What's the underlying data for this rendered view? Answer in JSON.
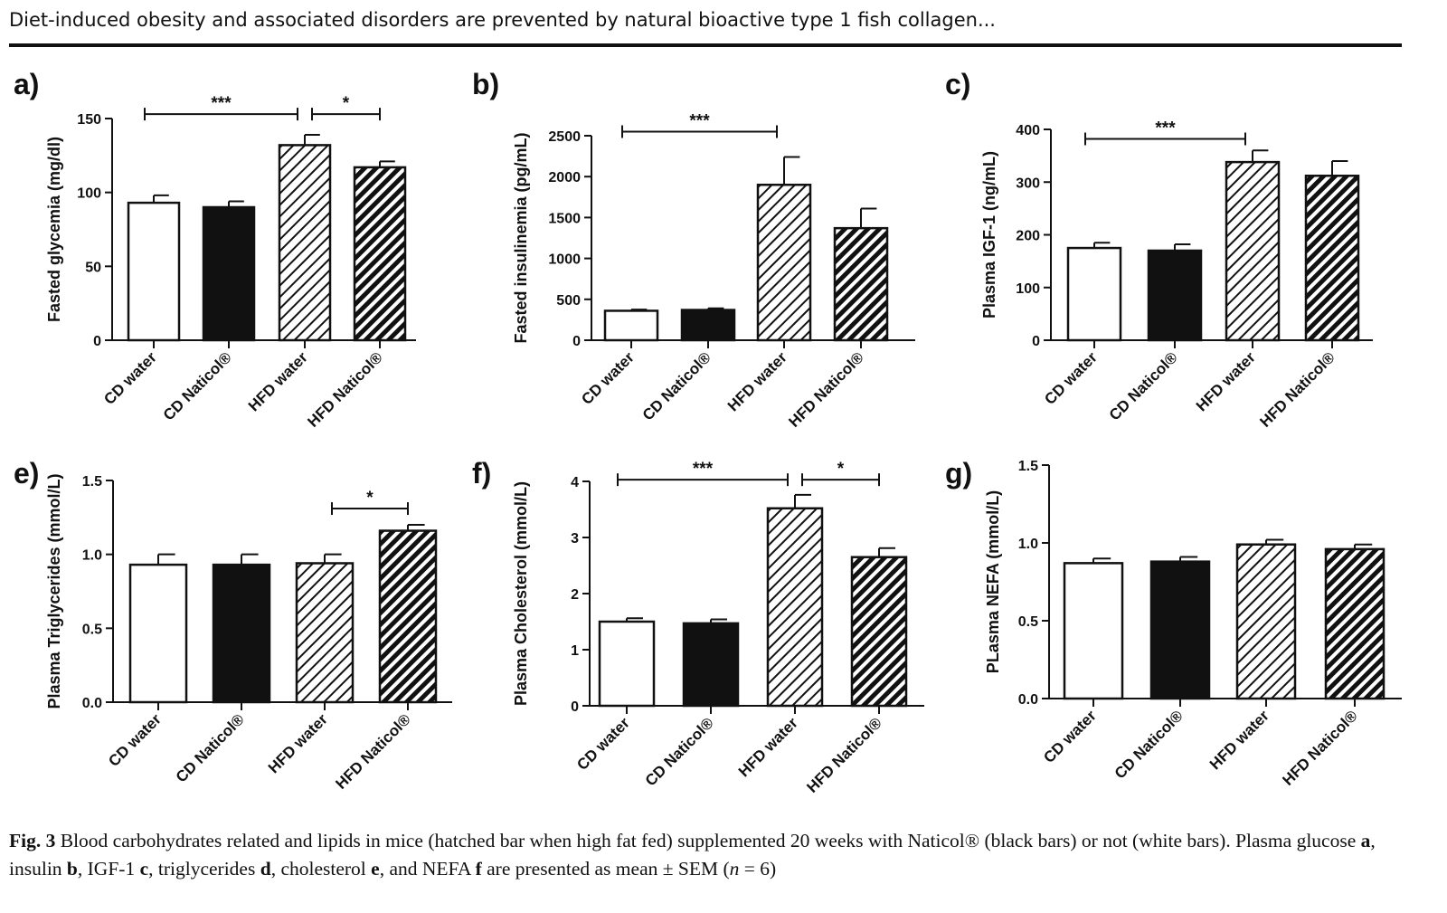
{
  "header": {
    "title": "Diet-induced obesity and associated disorders are prevented by natural bioactive type 1 fish collagen..."
  },
  "caption": {
    "fig_label": "Fig. 3",
    "text_1": "  Blood carbohydrates related and lipids in mice (hatched bar when high fat fed) supplemented 20 weeks with Naticol® (black bars) or not (white bars). Plasma glucose ",
    "ref_a": "a",
    "text_2": ", insulin ",
    "ref_b": "b",
    "text_3": ", IGF-1 ",
    "ref_c": "c",
    "text_4": ", triglycerides ",
    "ref_d": "d",
    "text_5": ", cholesterol ",
    "ref_e": "e",
    "text_6": ", and NEFA ",
    "ref_f": "f",
    "text_7": " are presented as mean ± SEM (",
    "n_var": "n",
    "text_8": " = 6)"
  },
  "colors": {
    "ink": "#111111",
    "white_bar": "#ffffff",
    "black_bar": "#111111"
  },
  "chart_data": [
    {
      "panel": "a)",
      "type": "bar",
      "ylabel": "Fasted glycemia (mg/dl)",
      "ylim": [
        0,
        150
      ],
      "yticks": [
        0,
        50,
        100,
        150
      ],
      "categories": [
        "CD water",
        "CD Naticol®",
        "HFD water",
        "HFD Naticol®"
      ],
      "fills": [
        "white",
        "black",
        "hatch-light",
        "hatch-dark"
      ],
      "values": [
        93,
        90,
        132,
        117
      ],
      "errors": [
        5,
        4,
        7,
        4
      ],
      "significance": [
        {
          "from": 0,
          "to": 2,
          "label": "***",
          "y": 153
        },
        {
          "from": 2,
          "to": 3,
          "label": "*",
          "y": 153
        }
      ]
    },
    {
      "panel": "b)",
      "type": "bar",
      "ylabel": "Fasted insulinemia (pg/mL)",
      "ylim": [
        0,
        2500
      ],
      "yticks": [
        0,
        500,
        1000,
        1500,
        2000,
        2500
      ],
      "categories": [
        "CD water",
        "CD Naticol®",
        "HFD water",
        "HFD Naticol®"
      ],
      "fills": [
        "white",
        "black",
        "hatch-light",
        "hatch-dark"
      ],
      "values": [
        360,
        370,
        1900,
        1370
      ],
      "errors": [
        15,
        20,
        340,
        240
      ],
      "significance": [
        {
          "from": 0,
          "to": 2,
          "label": "***",
          "y": 2550
        }
      ]
    },
    {
      "panel": "c)",
      "type": "bar",
      "ylabel": "Plasma IGF-1 (ng/mL)",
      "ylim": [
        0,
        400
      ],
      "yticks": [
        0,
        100,
        200,
        300,
        400
      ],
      "categories": [
        "CD water",
        "CD Naticol®",
        "HFD water",
        "HFD Naticol®"
      ],
      "fills": [
        "white",
        "black",
        "hatch-light",
        "hatch-dark"
      ],
      "values": [
        175,
        170,
        338,
        312
      ],
      "errors": [
        10,
        12,
        22,
        28
      ],
      "significance": [
        {
          "from": 0,
          "to": 2,
          "label": "***",
          "y": 382
        }
      ]
    },
    {
      "panel": "e)",
      "type": "bar",
      "ylabel": "Plasma Triglycerides (mmol/L)",
      "ylim": [
        0,
        1.5
      ],
      "yticks": [
        0.0,
        0.5,
        1.0,
        1.5
      ],
      "tick_decimals": 1,
      "categories": [
        "CD water",
        "CD Naticol®",
        "HFD water",
        "HFD Naticol®"
      ],
      "fills": [
        "white",
        "black",
        "hatch-light",
        "hatch-dark"
      ],
      "values": [
        0.93,
        0.93,
        0.94,
        1.16
      ],
      "errors": [
        0.07,
        0.07,
        0.06,
        0.04
      ],
      "significance": [
        {
          "from": 2,
          "to": 3,
          "label": "*",
          "y": 1.31
        }
      ]
    },
    {
      "panel": "f)",
      "type": "bar",
      "ylabel": "Plasma Cholesterol (mmol/L)",
      "ylim": [
        0,
        4
      ],
      "yticks": [
        0,
        1,
        2,
        3,
        4
      ],
      "categories": [
        "CD water",
        "CD Naticol®",
        "HFD water",
        "HFD Naticol®"
      ],
      "fills": [
        "white",
        "black",
        "hatch-light",
        "hatch-dark"
      ],
      "values": [
        1.5,
        1.47,
        3.52,
        2.65
      ],
      "errors": [
        0.06,
        0.07,
        0.24,
        0.16
      ],
      "significance": [
        {
          "from": 0,
          "to": 2,
          "label": "***",
          "y": 4.03
        },
        {
          "from": 2,
          "to": 3,
          "label": "*",
          "y": 4.03
        }
      ]
    },
    {
      "panel": "g)",
      "type": "bar",
      "ylabel": "PLasma NEFA (mmol/L)",
      "ylim": [
        0,
        1.5
      ],
      "yticks": [
        0.0,
        0.5,
        1.0,
        1.5
      ],
      "tick_decimals": 1,
      "categories": [
        "CD water",
        "CD Naticol®",
        "HFD water",
        "HFD Naticol®"
      ],
      "fills": [
        "white",
        "black",
        "hatch-light",
        "hatch-dark"
      ],
      "values": [
        0.87,
        0.88,
        0.99,
        0.96
      ],
      "errors": [
        0.03,
        0.03,
        0.03,
        0.03
      ],
      "significance": []
    }
  ]
}
